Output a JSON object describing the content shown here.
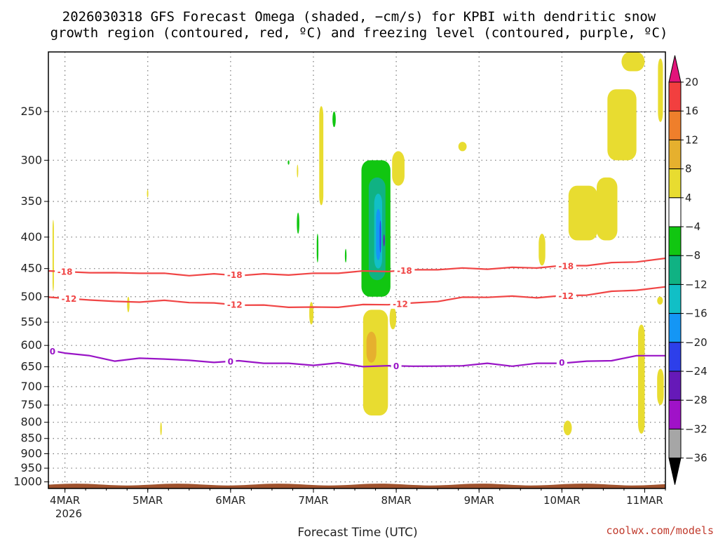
{
  "chart_data": {
    "type": "heatmap",
    "title_line1": "2026030318 GFS Forecast Omega (shaded, −cm/s) for KPBI with dendritic snow",
    "title_line2": "growth region (contoured, red, ºC) and freezing level (contoured, purple, ºC)",
    "xlabel": "Forecast Time (UTC)",
    "x_ticks": [
      "4MAR",
      "5MAR",
      "6MAR",
      "7MAR",
      "8MAR",
      "9MAR",
      "10MAR",
      "11MAR"
    ],
    "x_tick_values": [
      0,
      1,
      2,
      3,
      4,
      5,
      6,
      7
    ],
    "x_year": "2026",
    "xlim": [
      -0.2,
      7.25
    ],
    "y_ticks": [
      "250",
      "300",
      "350",
      "400",
      "450",
      "500",
      "550",
      "600",
      "650",
      "700",
      "750",
      "800",
      "850",
      "900",
      "950",
      "1000"
    ],
    "ylim": [
      200,
      1025
    ],
    "y_scale": "log-pressure",
    "ground_level": 1010,
    "colorbar": {
      "tick_labels": [
        "20",
        "16",
        "12",
        "8",
        "4",
        "−4",
        "−8",
        "−12",
        "−16",
        "−20",
        "−24",
        "−28",
        "−32",
        "−36"
      ],
      "colors": [
        "#e2147a",
        "#f23f3f",
        "#ef7f2b",
        "#e6b02e",
        "#e8dc30",
        "#ffffff",
        "#11c611",
        "#10b283",
        "#11bfc6",
        "#1496f5",
        "#2d3fea",
        "#6619b8",
        "#a012c8",
        "#a6a6a6",
        "#000000"
      ]
    },
    "contours": [
      {
        "label": "-18",
        "color": "#f04545",
        "x": [
          -0.2,
          0.3,
          0.6,
          0.9,
          1.2,
          1.5,
          1.8,
          2.1,
          2.4,
          2.7,
          3.0,
          3.3,
          3.6,
          3.9,
          4.2,
          4.5,
          4.8,
          5.1,
          5.4,
          5.7,
          6.0,
          6.3,
          6.6,
          6.9,
          7.25
        ],
        "values": [
          455,
          456,
          458,
          457,
          459,
          461,
          460,
          461,
          460,
          460,
          459,
          457,
          455,
          454,
          453,
          451,
          450,
          450,
          449,
          448,
          446,
          444,
          441,
          438,
          434
        ],
        "label_x": [
          0.0,
          2.05,
          4.1,
          6.05
        ]
      },
      {
        "label": "-12",
        "color": "#f04545",
        "x": [
          -0.2,
          0.3,
          0.6,
          0.9,
          1.2,
          1.5,
          1.8,
          2.1,
          2.4,
          2.7,
          3.0,
          3.3,
          3.6,
          3.9,
          4.2,
          4.5,
          4.8,
          5.1,
          5.4,
          5.7,
          6.0,
          6.3,
          6.6,
          6.9,
          7.25
        ],
        "values": [
          502,
          505,
          510,
          509,
          508,
          510,
          513,
          515,
          517,
          519,
          521,
          519,
          516,
          514,
          513,
          508,
          502,
          500,
          500,
          501,
          499,
          496,
          491,
          487,
          483
        ],
        "label_x": [
          0.05,
          2.05,
          4.05,
          6.05
        ]
      },
      {
        "label": "0",
        "color": "#9914c6",
        "x": [
          -0.2,
          0.0,
          0.3,
          0.6,
          0.9,
          1.2,
          1.5,
          1.8,
          2.1,
          2.4,
          2.7,
          3.0,
          3.3,
          3.6,
          3.9,
          4.2,
          4.5,
          4.8,
          5.1,
          5.4,
          5.7,
          6.0,
          6.3,
          6.6,
          6.9,
          7.25
        ],
        "values": [
          612,
          616,
          625,
          635,
          631,
          630,
          636,
          638,
          637,
          640,
          643,
          645,
          642,
          648,
          649,
          647,
          650,
          646,
          643,
          647,
          643,
          640,
          638,
          634,
          625,
          622
        ],
        "label_x": [
          -0.15,
          2.0,
          4.0,
          6.0
        ]
      }
    ],
    "omega_regions": [
      {
        "value": "4 to 8",
        "x": [
          -0.15,
          -0.14
        ],
        "p": [
          375,
          490
        ]
      },
      {
        "value": "4 to 8",
        "x": [
          0.75,
          0.78
        ],
        "p": [
          500,
          530
        ]
      },
      {
        "value": "4 to 8",
        "x": [
          0.99,
          1.0
        ],
        "p": [
          335,
          345
        ]
      },
      {
        "value": "4 to 8",
        "x": [
          1.15,
          1.17
        ],
        "p": [
          800,
          840
        ]
      },
      {
        "value": "4 to 8",
        "x": [
          2.8,
          2.81
        ],
        "p": [
          305,
          320
        ]
      },
      {
        "value": "4 to 8",
        "x": [
          3.07,
          3.12
        ],
        "p": [
          245,
          355
        ]
      },
      {
        "value": "-4 to -8",
        "x": [
          3.23,
          3.27
        ],
        "p": [
          250,
          265
        ]
      },
      {
        "value": "-4 to -8",
        "x": [
          2.8,
          2.83
        ],
        "p": [
          365,
          395
        ]
      },
      {
        "value": "-4 to -8",
        "x": [
          3.04,
          3.06
        ],
        "p": [
          395,
          440
        ]
      },
      {
        "value": "-4 to -8",
        "x": [
          2.69,
          2.71
        ],
        "p": [
          300,
          305
        ]
      },
      {
        "value": "4 to 8",
        "x": [
          2.95,
          3.0
        ],
        "p": [
          510,
          555
        ]
      },
      {
        "value": "-4 to -8",
        "x": [
          3.38,
          3.4
        ],
        "p": [
          418,
          440
        ]
      },
      {
        "value": "-4 to -28",
        "x": [
          3.58,
          3.93
        ],
        "p": [
          300,
          500
        ]
      },
      {
        "value": "4 to 12",
        "x": [
          3.6,
          3.9
        ],
        "p": [
          525,
          780
        ]
      },
      {
        "value": "4 to 8",
        "x": [
          3.92,
          4.0
        ],
        "p": [
          520,
          565
        ]
      },
      {
        "value": "4 to 8",
        "x": [
          3.95,
          4.1
        ],
        "p": [
          290,
          330
        ]
      },
      {
        "value": "4 to 8",
        "x": [
          4.75,
          4.85
        ],
        "p": [
          280,
          290
        ]
      },
      {
        "value": "4 to 8",
        "x": [
          5.72,
          5.8
        ],
        "p": [
          395,
          445
        ]
      },
      {
        "value": "4 to 8",
        "x": [
          6.08,
          6.43
        ],
        "p": [
          330,
          405
        ]
      },
      {
        "value": "4 to 8",
        "x": [
          6.42,
          6.67
        ],
        "p": [
          320,
          405
        ]
      },
      {
        "value": "4 to 8",
        "x": [
          6.55,
          6.9
        ],
        "p": [
          230,
          300
        ]
      },
      {
        "value": "4 to 8",
        "x": [
          6.72,
          7.0
        ],
        "p": [
          200,
          215
        ]
      },
      {
        "value": "4 to 8",
        "x": [
          6.92,
          7.0
        ],
        "p": [
          555,
          835
        ]
      },
      {
        "value": "4 to 8",
        "x": [
          6.02,
          6.12
        ],
        "p": [
          795,
          840
        ]
      },
      {
        "value": "4 to 8",
        "x": [
          7.16,
          7.22
        ],
        "p": [
          205,
          260
        ]
      },
      {
        "value": "4 to 8",
        "x": [
          7.15,
          7.23
        ],
        "p": [
          655,
          750
        ]
      },
      {
        "value": "4 to 8",
        "x": [
          7.15,
          7.22
        ],
        "p": [
          500,
          515
        ]
      }
    ]
  },
  "credit": "coolwx.com/models"
}
